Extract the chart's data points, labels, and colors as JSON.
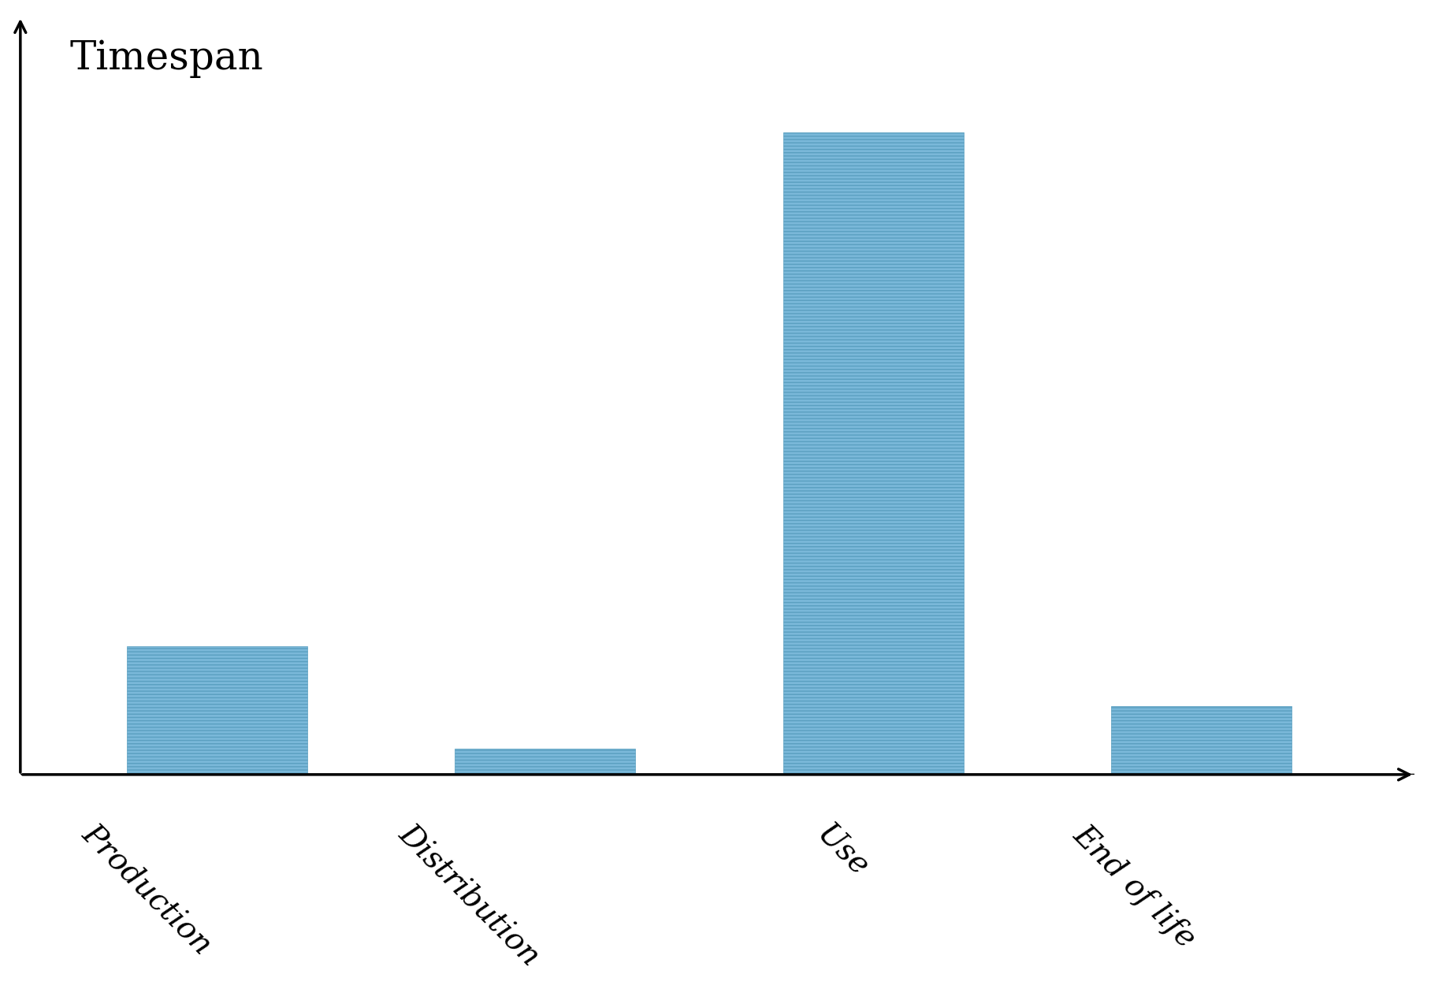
{
  "categories": [
    "Production",
    "Distribution",
    "Use",
    "End of life"
  ],
  "values": [
    15,
    3,
    75,
    8
  ],
  "bar_color": "#7ab8d9",
  "bar_edge_color": "#5a9fc0",
  "title": "Timespan",
  "title_fontsize": 36,
  "background_color": "#ffffff",
  "bar_width": 0.55,
  "hatch": "----",
  "xlabel_rotation": -45,
  "xlabel_fontsize": 28,
  "figsize": [
    18.16,
    12.55
  ]
}
